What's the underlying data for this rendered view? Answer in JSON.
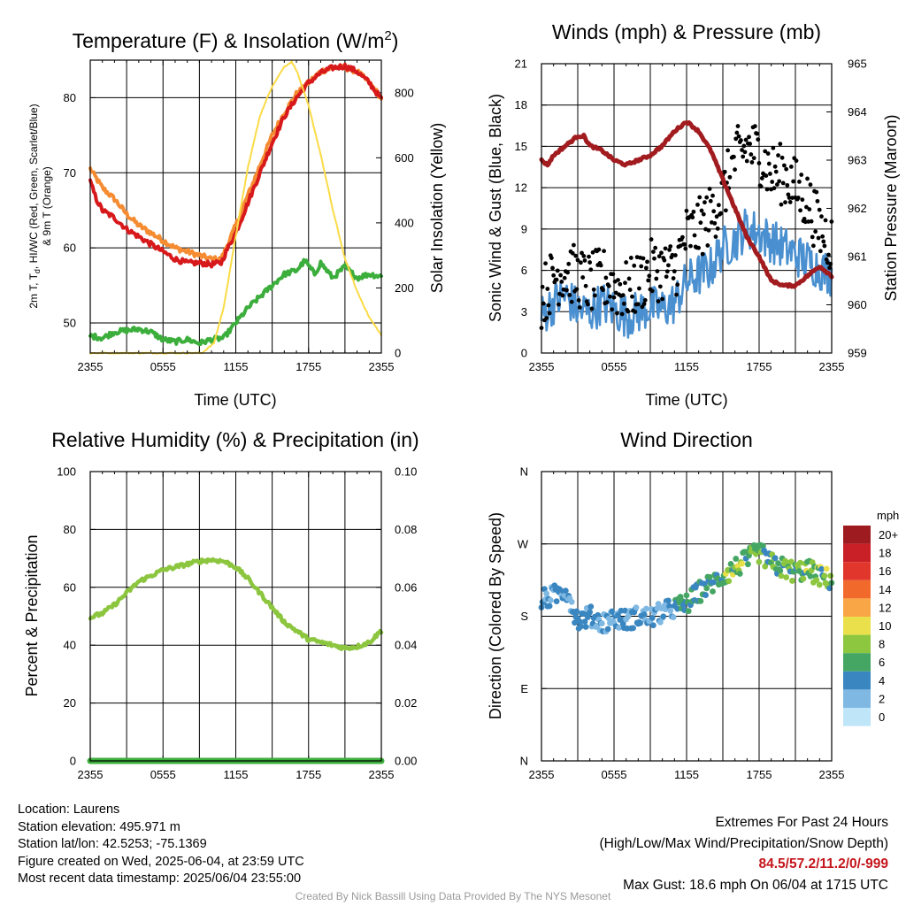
{
  "chart_data": [
    {
      "type": "line",
      "title": "Temperature (F) & Insolation (W/m",
      "title_sup": "2",
      "title_end": ")",
      "xlabel": "Time (UTC)",
      "ylabel_lines": [
        "2m T, T",
        "d",
        ", HI/WC (Red, Green, Scarlet/Blue)",
        "& 9m T (Orange)"
      ],
      "y2label": "Solar Insolation (Yellow)",
      "x_ticks": [
        "2355",
        "0555",
        "1155",
        "1755",
        "2355"
      ],
      "x_range_hours": [
        0,
        24
      ],
      "ylim": [
        46,
        85
      ],
      "y_ticks": [
        50,
        60,
        70,
        80
      ],
      "y2lim": [
        0,
        900
      ],
      "y2_ticks": [
        0,
        200,
        400,
        600,
        800
      ],
      "grid": true,
      "series": [
        {
          "color": "#f58c32",
          "axis": "left",
          "points": [
            [
              0,
              70.5
            ],
            [
              1,
              68
            ],
            [
              2,
              66.5
            ],
            [
              3,
              64.5
            ],
            [
              4,
              63
            ],
            [
              5,
              62
            ],
            [
              6,
              61
            ],
            [
              7,
              60
            ],
            [
              8,
              59.5
            ],
            [
              9,
              59
            ],
            [
              10,
              58.5
            ],
            [
              10.8,
              58.5
            ],
            [
              11.2,
              60
            ],
            [
              12,
              63
            ],
            [
              13,
              67
            ],
            [
              14,
              71
            ],
            [
              15,
              75
            ],
            [
              16,
              78
            ],
            [
              17,
              80.5
            ],
            [
              18,
              82
            ],
            [
              19,
              83.5
            ],
            [
              20,
              84
            ],
            [
              21,
              84
            ],
            [
              22,
              83.5
            ],
            [
              23,
              82
            ],
            [
              24,
              80
            ]
          ]
        },
        {
          "color": "#d7191c",
          "axis": "left",
          "points": [
            [
              0,
              68.8
            ],
            [
              0.5,
              66.5
            ],
            [
              1,
              65
            ],
            [
              2,
              64
            ],
            [
              3,
              62.5
            ],
            [
              4,
              61.5
            ],
            [
              5,
              60.5
            ],
            [
              6,
              59.5
            ],
            [
              7,
              58.5
            ],
            [
              8,
              58
            ],
            [
              9,
              58
            ],
            [
              10,
              57.8
            ],
            [
              10.8,
              58
            ],
            [
              11.2,
              59.5
            ],
            [
              12,
              62
            ],
            [
              13,
              66
            ],
            [
              14,
              70
            ],
            [
              15,
              74
            ],
            [
              16,
              77.5
            ],
            [
              17,
              80
            ],
            [
              18,
              82
            ],
            [
              19,
              83.3
            ],
            [
              20,
              84
            ],
            [
              21,
              84.2
            ],
            [
              22,
              83.5
            ],
            [
              23,
              82
            ],
            [
              24,
              79.8
            ]
          ]
        },
        {
          "color": "#3cae3c",
          "axis": "left",
          "points": [
            [
              0,
              48.3
            ],
            [
              1,
              48
            ],
            [
              2,
              48.8
            ],
            [
              3,
              49
            ],
            [
              4,
              49.2
            ],
            [
              5,
              48.8
            ],
            [
              6,
              47.8
            ],
            [
              7,
              47.5
            ],
            [
              8,
              47.8
            ],
            [
              9,
              47.3
            ],
            [
              10,
              47.8
            ],
            [
              11,
              48
            ],
            [
              12,
              50
            ],
            [
              13,
              52
            ],
            [
              14,
              53.5
            ],
            [
              15,
              55
            ],
            [
              16,
              56.5
            ],
            [
              17,
              57
            ],
            [
              17.7,
              58.3
            ],
            [
              18.5,
              56.5
            ],
            [
              19,
              58
            ],
            [
              20,
              56
            ],
            [
              21,
              57.5
            ],
            [
              22,
              56
            ],
            [
              23,
              56.5
            ],
            [
              24,
              56.2
            ]
          ]
        },
        {
          "color": "#fbdb47",
          "axis": "right",
          "points": [
            [
              0,
              0
            ],
            [
              9.2,
              0
            ],
            [
              10.2,
              30
            ],
            [
              11,
              140
            ],
            [
              12,
              360
            ],
            [
              13,
              570
            ],
            [
              14,
              730
            ],
            [
              15,
              820
            ],
            [
              16,
              880
            ],
            [
              16.6,
              895
            ],
            [
              17,
              870
            ],
            [
              18,
              760
            ],
            [
              19,
              610
            ],
            [
              20,
              440
            ],
            [
              21,
              290
            ],
            [
              22,
              190
            ],
            [
              23,
              110
            ],
            [
              24,
              55
            ]
          ]
        }
      ]
    },
    {
      "type": "scatter",
      "title": "Winds (mph) & Pressure (mb)",
      "xlabel": "Time (UTC)",
      "ylabel": "Sonic Wind & Gust (Blue, Black)",
      "y2label": "Station Pressure (Maroon)",
      "x_ticks": [
        "2355",
        "0555",
        "1155",
        "1755",
        "2355"
      ],
      "x_range_hours": [
        0,
        24
      ],
      "ylim": [
        0,
        21
      ],
      "y_ticks": [
        0,
        3,
        6,
        9,
        12,
        15,
        18,
        21
      ],
      "y2lim": [
        959,
        965
      ],
      "y2_ticks": [
        959,
        960,
        961,
        962,
        963,
        964,
        965
      ],
      "grid": true,
      "wind_mean_approx": [
        [
          0,
          2.5
        ],
        [
          1,
          3.5
        ],
        [
          2,
          4
        ],
        [
          3,
          3
        ],
        [
          4,
          2.8
        ],
        [
          5,
          3.5
        ],
        [
          6,
          3
        ],
        [
          7,
          2.5
        ],
        [
          8,
          2.8
        ],
        [
          9,
          3.2
        ],
        [
          10,
          3
        ],
        [
          11,
          3.5
        ],
        [
          12,
          5
        ],
        [
          13,
          5.5
        ],
        [
          14,
          6
        ],
        [
          15,
          7.5
        ],
        [
          16,
          8
        ],
        [
          17,
          9
        ],
        [
          18,
          8.5
        ],
        [
          19,
          8
        ],
        [
          20,
          7.5
        ],
        [
          21,
          7
        ],
        [
          22,
          6.5
        ],
        [
          23,
          6
        ],
        [
          24,
          5.5
        ]
      ],
      "gust_mean_approx": [
        [
          0,
          4
        ],
        [
          1,
          5.5
        ],
        [
          2,
          6
        ],
        [
          3,
          5.5
        ],
        [
          4,
          5
        ],
        [
          5,
          5.5
        ],
        [
          6,
          4.8
        ],
        [
          7,
          4.5
        ],
        [
          8,
          5
        ],
        [
          9,
          6
        ],
        [
          10,
          6
        ],
        [
          11,
          6
        ],
        [
          12,
          8.5
        ],
        [
          13,
          9
        ],
        [
          14,
          10
        ],
        [
          15,
          11.5
        ],
        [
          16,
          14
        ],
        [
          17,
          15
        ],
        [
          18,
          14.5
        ],
        [
          19,
          13
        ],
        [
          20,
          13
        ],
        [
          21,
          12
        ],
        [
          22,
          11
        ],
        [
          23,
          9
        ],
        [
          24,
          8
        ]
      ],
      "pressure": [
        [
          0,
          963.0
        ],
        [
          0.5,
          962.9
        ],
        [
          1,
          963.1
        ],
        [
          2,
          963.3
        ],
        [
          3,
          963.5
        ],
        [
          3.5,
          963.5
        ],
        [
          4,
          963.3
        ],
        [
          5,
          963.2
        ],
        [
          6,
          963.0
        ],
        [
          7,
          962.9
        ],
        [
          8,
          963.0
        ],
        [
          9,
          963.1
        ],
        [
          10,
          963.3
        ],
        [
          11,
          963.6
        ],
        [
          12,
          963.8
        ],
        [
          13,
          963.6
        ],
        [
          14,
          963.2
        ],
        [
          15,
          962.6
        ],
        [
          16,
          962.0
        ],
        [
          17,
          961.4
        ],
        [
          18,
          961.0
        ],
        [
          19,
          960.5
        ],
        [
          20,
          960.4
        ],
        [
          21,
          960.4
        ],
        [
          22,
          960.6
        ],
        [
          23,
          960.8
        ],
        [
          24,
          960.6
        ]
      ]
    },
    {
      "type": "line",
      "title": "Relative Humidity (%) & Precipitation (in)",
      "ylabel": "Percent & Precipitation",
      "x_ticks": [
        "2355",
        "0555",
        "1155",
        "1755",
        "2355"
      ],
      "x_range_hours": [
        0,
        24
      ],
      "ylim": [
        0,
        100
      ],
      "y_ticks": [
        0,
        20,
        40,
        60,
        80,
        100
      ],
      "y2lim": [
        0,
        0.1
      ],
      "y2_ticks": [
        "0.00",
        "0.02",
        "0.04",
        "0.06",
        "0.08",
        "0.10"
      ],
      "grid": true,
      "series": [
        {
          "color": "#8cc63f",
          "axis": "left",
          "points": [
            [
              0,
              49.5
            ],
            [
              1,
              51
            ],
            [
              2,
              54
            ],
            [
              3,
              58
            ],
            [
              4,
              62
            ],
            [
              5,
              64
            ],
            [
              6,
              66
            ],
            [
              7,
              67
            ],
            [
              8,
              68
            ],
            [
              9,
              69
            ],
            [
              10,
              69.5
            ],
            [
              11,
              69
            ],
            [
              12,
              67
            ],
            [
              13,
              63
            ],
            [
              14,
              58
            ],
            [
              15,
              53
            ],
            [
              16,
              48
            ],
            [
              17,
              45
            ],
            [
              18,
              42
            ],
            [
              19,
              41
            ],
            [
              20,
              40
            ],
            [
              21,
              39
            ],
            [
              22,
              39.5
            ],
            [
              23,
              41
            ],
            [
              24,
              45
            ]
          ]
        },
        {
          "color": "#3cae3c",
          "axis": "right",
          "points": [
            [
              0,
              0
            ],
            [
              24,
              0
            ]
          ]
        }
      ]
    },
    {
      "type": "scatter",
      "title": "Wind Direction",
      "ylabel": "Direction (Colored By Speed)",
      "x_ticks": [
        "2355",
        "0555",
        "1155",
        "1755",
        "2355"
      ],
      "x_range_hours": [
        0,
        24
      ],
      "y_ticks": [
        "N",
        "E",
        "S",
        "W",
        "N"
      ],
      "ylim": [
        0,
        360
      ],
      "grid": true,
      "direction_approx": [
        [
          0,
          200
        ],
        [
          1,
          205
        ],
        [
          2,
          215
        ],
        [
          3,
          175
        ],
        [
          4,
          180
        ],
        [
          5,
          172
        ],
        [
          6,
          178
        ],
        [
          7,
          175
        ],
        [
          8,
          180
        ],
        [
          9,
          178
        ],
        [
          10,
          185
        ],
        [
          11,
          190
        ],
        [
          12,
          195
        ],
        [
          13,
          210
        ],
        [
          14,
          220
        ],
        [
          15,
          230
        ],
        [
          16,
          240
        ],
        [
          17,
          250
        ],
        [
          18,
          260
        ],
        [
          19,
          245
        ],
        [
          20,
          240
        ],
        [
          21,
          235
        ],
        [
          22,
          238
        ],
        [
          23,
          230
        ],
        [
          24,
          225
        ]
      ],
      "legend": {
        "unit": "mph",
        "labels": [
          "20+",
          "18",
          "16",
          "14",
          "12",
          "10",
          "8",
          "6",
          "4",
          "2",
          "0"
        ],
        "colors": [
          "#9e1b1f",
          "#c91f26",
          "#e1362c",
          "#f26a2b",
          "#f9a646",
          "#eae04b",
          "#8dc63f",
          "#45a664",
          "#3a86c0",
          "#7fb9e3",
          "#bfe5f8"
        ]
      }
    }
  ],
  "footer": {
    "location": "Location: Laurens",
    "elevation": "Station elevation: 495.971 m",
    "latlon": "Station lat/lon: 42.5253; -75.1369",
    "created": "Figure created on Wed, 2025-06-04, at 23:59 UTC",
    "recent": "Most recent data timestamp: 2025/06/04 23:55:00",
    "extremes_title": "Extremes For Past 24 Hours",
    "extremes_desc": "(High/Low/Max Wind/Precipitation/Snow Depth)",
    "extremes_values": "84.5/57.2/11.2/0/-999",
    "max_gust": "Max Gust: 18.6 mph On 06/04 at 1715 UTC"
  },
  "credit": "Created By Nick Bassill Using Data Provided By The NYS Mesonet"
}
